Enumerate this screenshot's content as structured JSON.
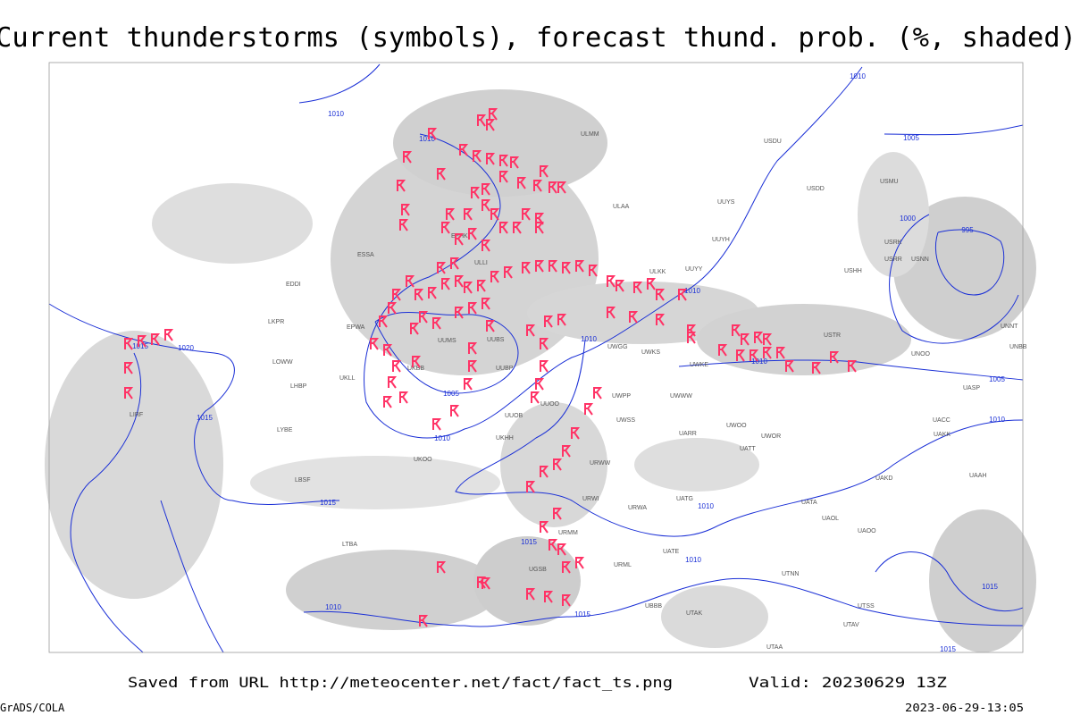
{
  "title": "Current thunderstorms (symbols), forecast thund. prob. (%, shaded)",
  "footer": {
    "saved": "Saved from URL http://meteocenter.net/fact/fact_ts.png",
    "valid": "Valid: 20230629 13Z",
    "credit": "GrADS/COLA",
    "timestamp": "2023-06-29-13:05"
  },
  "isobar_labels": [
    "1010",
    "1010",
    "1010",
    "1010",
    "1010",
    "1010",
    "1010",
    "1010",
    "1010",
    "1010",
    "1010",
    "1005",
    "1005",
    "1005",
    "1000",
    "995",
    "1015",
    "1015",
    "1015",
    "1015",
    "1015",
    "1015",
    "1015",
    "1020"
  ],
  "stations": [
    "ULAA",
    "ULKK",
    "UUYY",
    "UUYH",
    "UUYS",
    "USDD",
    "USMU",
    "USHH",
    "USRR",
    "USNN",
    "USTR",
    "UNOO",
    "UNBB",
    "UNNT",
    "UASP",
    "UACC",
    "UAKK",
    "UAAH",
    "UAKD",
    "UATA",
    "UAOL",
    "UAOO",
    "UATE",
    "UATG",
    "UARR",
    "UATT",
    "UWOR",
    "UWOO",
    "UWWW",
    "UWKE",
    "UWKS",
    "UWGG",
    "UWPP",
    "UWSS",
    "URWW",
    "URWI",
    "URWA",
    "URML",
    "URMM",
    "UUOO",
    "UUOB",
    "UUBS",
    "UUBP",
    "UUMS",
    "EPWA",
    "LKPR",
    "LOWW",
    "LHBP",
    "LYBE",
    "LBSF",
    "LTBA",
    "LIRF",
    "EDDI",
    "UKLL",
    "UKBB",
    "UKOO",
    "UKHH",
    "UGSB",
    "UTAK",
    "UBBB",
    "UTAV",
    "UTNN",
    "UTSS",
    "UTAA",
    "ULLI",
    "EFHK",
    "ESSA",
    "ULMM",
    "USDU",
    "USRK"
  ]
}
